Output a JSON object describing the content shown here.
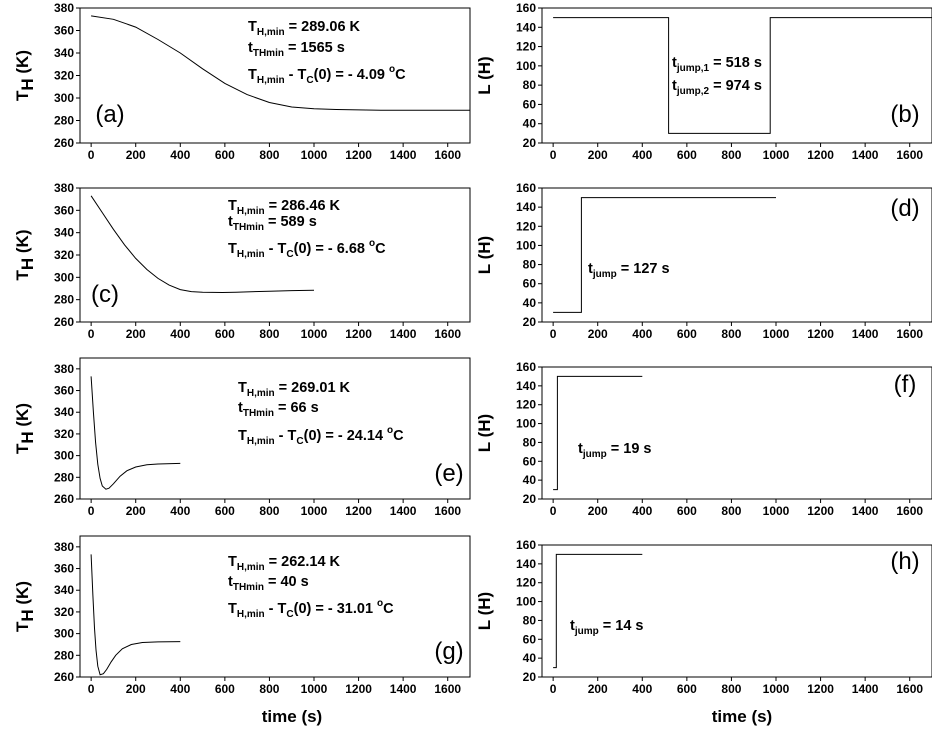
{
  "figure": {
    "xlabel": "time (s)"
  },
  "chart_data": [
    {
      "id": "a",
      "type": "line",
      "panel_label": "(a)",
      "ylabel": {
        "main": "T",
        "sub": "H",
        "unit": "(K)"
      },
      "xlim": [
        -50,
        1700
      ],
      "ylim": [
        260,
        380
      ],
      "xticks": [
        0,
        200,
        400,
        600,
        800,
        1000,
        1200,
        1400,
        1600
      ],
      "yticks": [
        260,
        280,
        300,
        320,
        340,
        360,
        380
      ],
      "series": [
        {
          "x": [
            0,
            100,
            200,
            300,
            400,
            500,
            600,
            700,
            800,
            900,
            1000,
            1100,
            1200,
            1300,
            1400,
            1500,
            1600,
            1700
          ],
          "y": [
            373,
            370,
            363,
            352,
            340,
            326,
            313,
            303,
            296,
            292,
            290.5,
            289.8,
            289.4,
            289.2,
            289.1,
            289.06,
            289.06,
            289.06
          ]
        }
      ],
      "annotations": [
        {
          "main": "T",
          "sub": "H,min",
          "rest": " = 289.06 K"
        },
        {
          "main": "t",
          "sub": "THmin",
          "rest": " = 1565 s"
        },
        {
          "main": "T",
          "sub": "H,min",
          "rest": " - T",
          "sub2": "C",
          "rest2": "(0) = - 4.09 ",
          "sup": "o",
          "rest3": "C"
        }
      ]
    },
    {
      "id": "b",
      "type": "line",
      "panel_label": "(b)",
      "ylabel": {
        "main": "L",
        "sub": "",
        "unit": "(H)"
      },
      "xlim": [
        -50,
        1700
      ],
      "ylim": [
        20,
        160
      ],
      "xticks": [
        0,
        200,
        400,
        600,
        800,
        1000,
        1200,
        1400,
        1600
      ],
      "yticks": [
        20,
        40,
        60,
        80,
        100,
        120,
        140,
        160
      ],
      "series": [
        {
          "x": [
            0,
            518,
            518,
            974,
            974,
            1700
          ],
          "y": [
            150,
            150,
            30,
            30,
            150,
            150
          ]
        }
      ],
      "annotations": [
        {
          "main": "t",
          "sub": "jump,1",
          "rest": " = 518 s"
        },
        {
          "main": "t",
          "sub": "jump,2",
          "rest": " = 974 s"
        }
      ]
    },
    {
      "id": "c",
      "type": "line",
      "panel_label": "(c)",
      "ylabel": {
        "main": "T",
        "sub": "H",
        "unit": "(K)"
      },
      "xlim": [
        -50,
        1700
      ],
      "ylim": [
        260,
        380
      ],
      "xticks": [
        0,
        200,
        400,
        600,
        800,
        1000,
        1200,
        1400,
        1600
      ],
      "yticks": [
        280,
        300,
        320,
        340,
        360,
        380
      ],
      "yticks_extra": [
        260
      ],
      "series": [
        {
          "x": [
            0,
            50,
            100,
            150,
            200,
            250,
            300,
            350,
            400,
            450,
            500,
            589,
            650,
            700,
            800,
            900,
            1000
          ],
          "y": [
            373,
            358,
            343,
            329,
            317,
            307,
            299,
            293,
            289,
            287.2,
            286.6,
            286.46,
            286.6,
            287,
            287.6,
            288.1,
            288.4
          ]
        }
      ],
      "annotations": [
        {
          "main": "T",
          "sub": "H,min",
          "rest": " = 286.46 K"
        },
        {
          "main": "t",
          "sub": "THmin",
          "rest": " =    589 s"
        },
        {
          "main": "T",
          "sub": "H,min",
          "rest": " - T",
          "sub2": "C",
          "rest2": "(0) = - 6.68 ",
          "sup": "o",
          "rest3": "C"
        }
      ]
    },
    {
      "id": "d",
      "type": "line",
      "panel_label": "(d)",
      "ylabel": {
        "main": "L",
        "sub": "",
        "unit": "(H)"
      },
      "xlim": [
        -50,
        1700
      ],
      "ylim": [
        20,
        160
      ],
      "xticks": [
        0,
        200,
        400,
        600,
        800,
        1000,
        1200,
        1400,
        1600
      ],
      "yticks": [
        20,
        40,
        60,
        80,
        100,
        120,
        140,
        160
      ],
      "series": [
        {
          "x": [
            0,
            127,
            127,
            1000
          ],
          "y": [
            30,
            30,
            150,
            150
          ]
        }
      ],
      "annotations": [
        {
          "main": "t",
          "sub": "jump",
          "rest": " = 127 s"
        }
      ]
    },
    {
      "id": "e",
      "type": "line",
      "panel_label": "(e)",
      "ylabel": {
        "main": "T",
        "sub": "H",
        "unit": "(K)"
      },
      "xlim": [
        -50,
        1700
      ],
      "ylim": [
        260,
        390
      ],
      "xticks": [
        0,
        200,
        400,
        600,
        800,
        1000,
        1200,
        1400,
        1600
      ],
      "yticks": [
        260,
        280,
        300,
        320,
        340,
        360,
        380
      ],
      "series": [
        {
          "x": [
            0,
            10,
            20,
            30,
            40,
            50,
            66,
            80,
            100,
            130,
            160,
            200,
            250,
            300,
            400
          ],
          "y": [
            373,
            340,
            312,
            292,
            279,
            272,
            269.01,
            270,
            274,
            281,
            286,
            289.5,
            291.5,
            292.3,
            292.8
          ]
        }
      ],
      "annotations": [
        {
          "main": "T",
          "sub": "H,min",
          "rest": " = 269.01 K"
        },
        {
          "main": "t",
          "sub": "THmin",
          "rest": " =     66 s"
        },
        {
          "main": "T",
          "sub": "H,min",
          "rest": " - T",
          "sub2": "C",
          "rest2": "(0) = - 24.14 ",
          "sup": "o",
          "rest3": "C"
        }
      ]
    },
    {
      "id": "f",
      "type": "line",
      "panel_label": "(f)",
      "ylabel": {
        "main": "L",
        "sub": "",
        "unit": "(H)"
      },
      "xlim": [
        -50,
        1700
      ],
      "ylim": [
        20,
        160
      ],
      "xticks": [
        0,
        200,
        400,
        600,
        800,
        1000,
        1200,
        1400,
        1600
      ],
      "yticks": [
        20,
        40,
        60,
        80,
        100,
        120,
        140,
        160
      ],
      "series": [
        {
          "x": [
            0,
            19,
            19,
            400
          ],
          "y": [
            30,
            30,
            150,
            150
          ]
        }
      ],
      "annotations": [
        {
          "main": "t",
          "sub": "jump",
          "rest": " = 19 s"
        }
      ]
    },
    {
      "id": "g",
      "type": "line",
      "panel_label": "(g)",
      "ylabel": {
        "main": "T",
        "sub": "H",
        "unit": "(K)"
      },
      "xlim": [
        -50,
        1700
      ],
      "ylim": [
        260,
        390
      ],
      "xticks": [
        0,
        200,
        400,
        600,
        800,
        1000,
        1200,
        1400,
        1600
      ],
      "yticks": [
        260,
        280,
        300,
        320,
        340,
        360,
        380
      ],
      "series": [
        {
          "x": [
            0,
            8,
            15,
            22,
            30,
            40,
            55,
            70,
            90,
            110,
            140,
            180,
            230,
            300,
            400
          ],
          "y": [
            373,
            335,
            305,
            285,
            270,
            262.14,
            263,
            267,
            274,
            280,
            286,
            290,
            291.8,
            292.4,
            292.6
          ]
        }
      ],
      "annotations": [
        {
          "main": "T",
          "sub": "H,min",
          "rest": " = 262.14 K"
        },
        {
          "main": "t",
          "sub": "THmin",
          "rest": " =     40 s"
        },
        {
          "main": "T",
          "sub": "H,min",
          "rest": " - T",
          "sub2": "C",
          "rest2": "(0) = - 31.01 ",
          "sup": "o",
          "rest3": "C"
        }
      ]
    },
    {
      "id": "h",
      "type": "line",
      "panel_label": "(h)",
      "ylabel": {
        "main": "L",
        "sub": "",
        "unit": "(H)"
      },
      "xlim": [
        -50,
        1700
      ],
      "ylim": [
        20,
        160
      ],
      "xticks": [
        0,
        200,
        400,
        600,
        800,
        1000,
        1200,
        1400,
        1600
      ],
      "yticks": [
        20,
        40,
        60,
        80,
        100,
        120,
        140,
        160
      ],
      "series": [
        {
          "x": [
            0,
            14,
            14,
            400
          ],
          "y": [
            30,
            30,
            150,
            150
          ]
        }
      ],
      "annotations": [
        {
          "main": "t",
          "sub": "jump",
          "rest": " = 14 s"
        }
      ]
    }
  ]
}
